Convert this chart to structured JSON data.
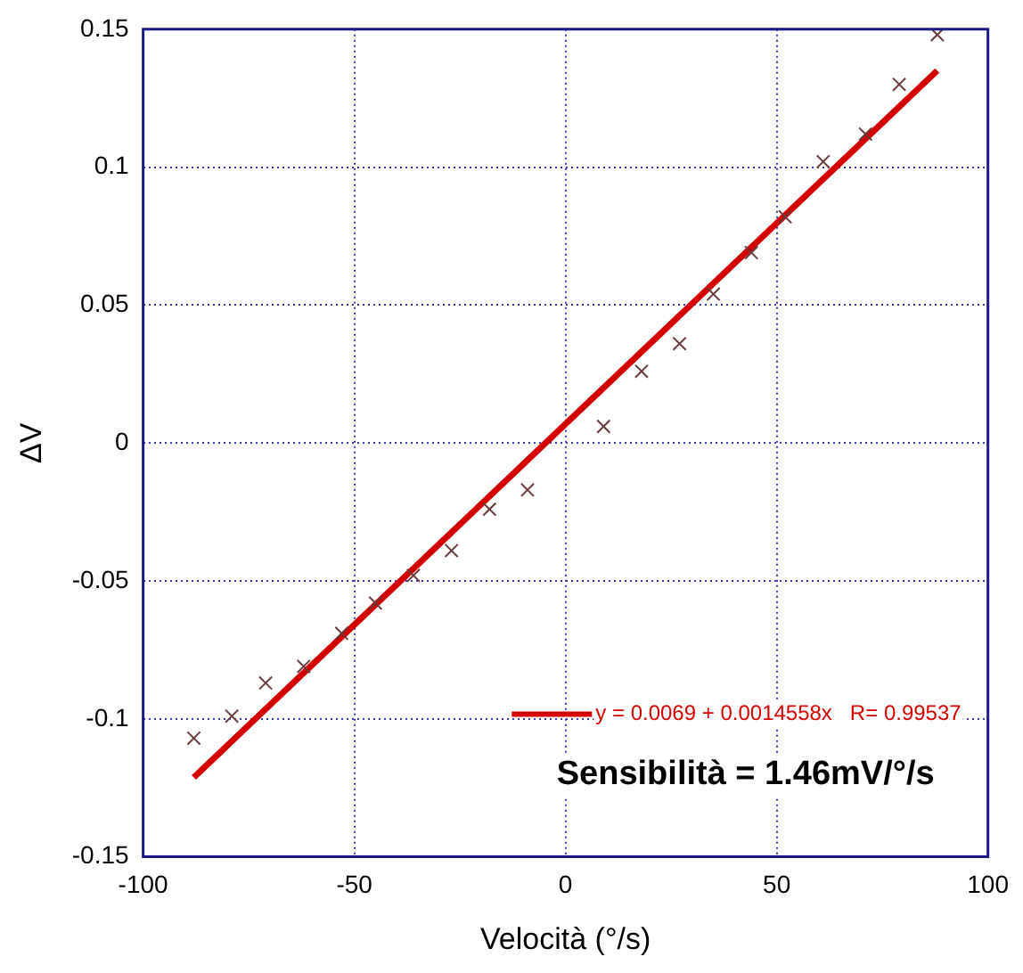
{
  "chart_data": {
    "type": "scatter",
    "xlabel": "Velocità (°/s)",
    "ylabel": "ΔV",
    "xlim": [
      -100,
      100
    ],
    "xticks": [
      -100,
      -50,
      0,
      50,
      100
    ],
    "ylim": [
      -0.15,
      0.15
    ],
    "yticks": [
      -0.15,
      -0.1,
      -0.05,
      0,
      0.05,
      0.1,
      0.15
    ],
    "grid": true,
    "legend": "bottom right",
    "marker": "cross",
    "annotations": [
      "Sensibilità = 1.46mV/°/s"
    ],
    "series": [
      {
        "color": "#6b3a3a",
        "x": [
          -88,
          -79,
          -71,
          -62,
          -53,
          -45,
          -36,
          -27,
          -18,
          -9,
          9,
          18,
          27,
          35,
          44,
          52,
          61,
          71,
          79,
          88
        ],
        "values": [
          -0.107,
          -0.099,
          -0.087,
          -0.081,
          -0.069,
          -0.058,
          -0.048,
          -0.039,
          -0.024,
          -0.017,
          0.006,
          0.026,
          0.036,
          0.054,
          0.069,
          0.082,
          0.102,
          0.112,
          0.13,
          0.148
        ]
      },
      {
        "type": "line",
        "name": "y = 0.0069 + 0.0014558x   R= 0.99537",
        "color": "#d40000",
        "marker": "none",
        "x": [
          -88,
          88
        ],
        "values": [
          -0.1212,
          0.135
        ]
      }
    ]
  }
}
